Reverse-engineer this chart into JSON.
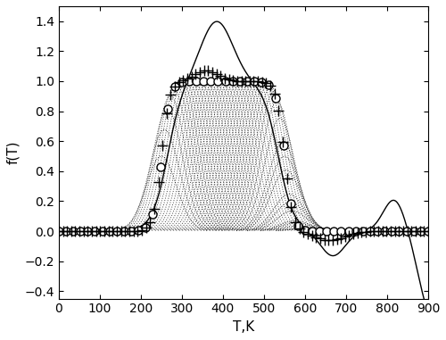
{
  "title": "",
  "xlabel": "T,K",
  "ylabel": "f(T)",
  "xlim": [
    0,
    900
  ],
  "ylim": [
    -0.45,
    1.5
  ],
  "xticks": [
    0,
    100,
    200,
    300,
    400,
    500,
    600,
    700,
    800,
    900
  ],
  "yticks": [
    -0.4,
    -0.2,
    0.0,
    0.2,
    0.4,
    0.6,
    0.8,
    1.0,
    1.2,
    1.4
  ],
  "background_color": "#ffffff",
  "text_color": "#000000",
  "T_min": 0,
  "T_max": 900,
  "T_steps": 901,
  "exact_markersize": 6.5,
  "cross_markersize": 8,
  "solid_linewidth": 1.0,
  "dotted_linewidth": 0.7,
  "figsize": [
    5.0,
    3.81
  ],
  "dpi": 100,
  "exact_n_markers": 52,
  "cross_n_markers": 90,
  "dotted_n_lines": 55,
  "dotted_alpha": 0.75
}
